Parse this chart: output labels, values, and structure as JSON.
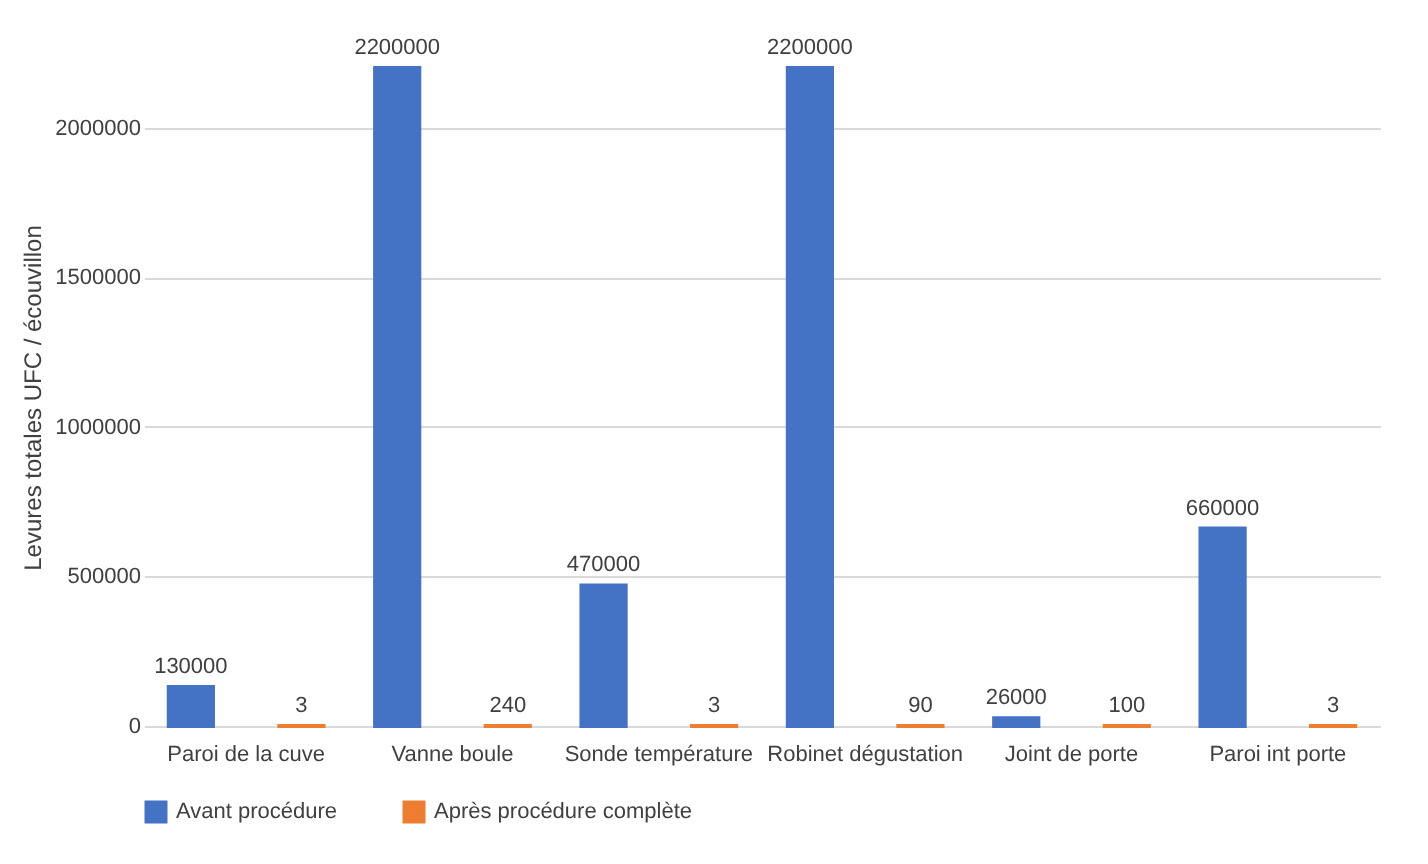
{
  "chart_data": {
    "type": "bar",
    "ylabel": "Levures totales UFC / écouvillon",
    "categories": [
      "Paroi de la cuve",
      "Vanne boule",
      "Sonde température",
      "Robinet dégustation",
      "Joint de porte",
      "Paroi int porte"
    ],
    "series": [
      {
        "name": "Avant procédure",
        "color": "#4472c4",
        "values": [
          130000,
          2200000,
          470000,
          2200000,
          26000,
          660000
        ]
      },
      {
        "name": "Après procédure complète",
        "color": "#ed7d31",
        "values": [
          3,
          240,
          3,
          90,
          100,
          3
        ]
      }
    ],
    "ylim": [
      0,
      2200000
    ],
    "yticks": [
      0,
      500000,
      1000000,
      1500000,
      2000000
    ],
    "grid": "y",
    "legend": "bottom",
    "data_labels": true
  }
}
